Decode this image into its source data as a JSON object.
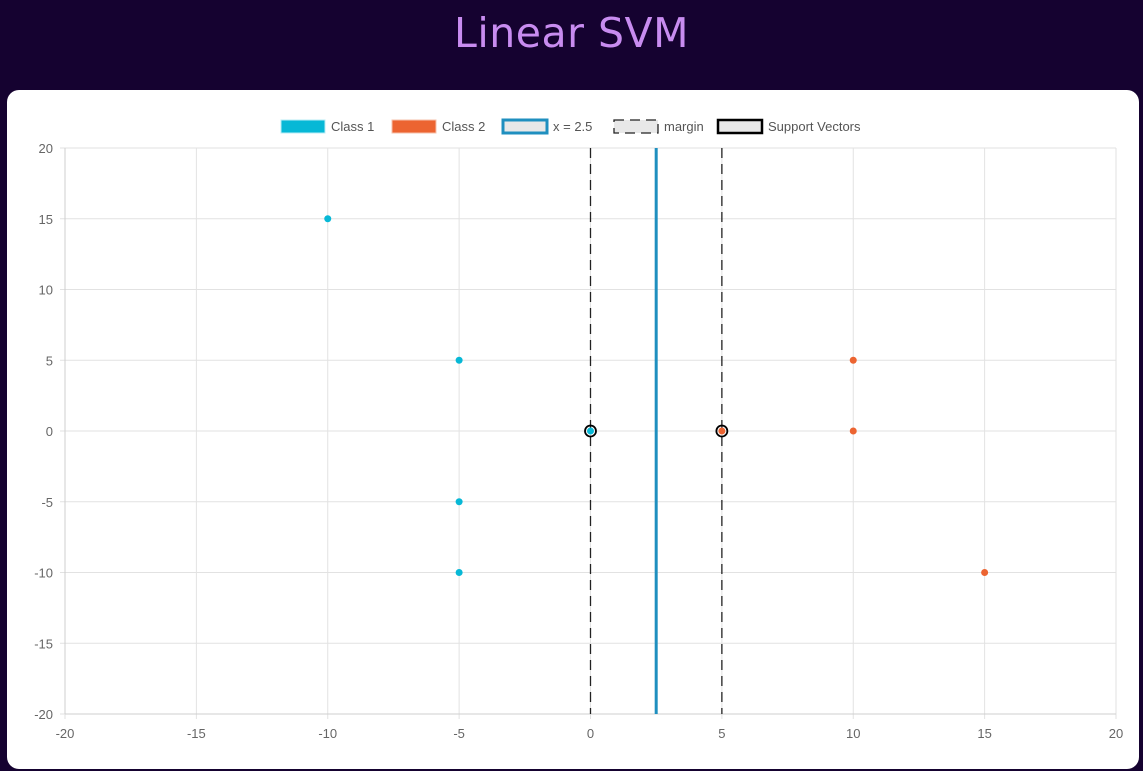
{
  "page": {
    "title": "Linear SVM"
  },
  "colors": {
    "background": "#150230",
    "title": "#c88cf0",
    "class1": "#07b8d6",
    "class2": "#ec6431",
    "boundary": "#1f8fbf",
    "margin": "#222222",
    "support": "#000000",
    "grid": "#e2e2e2"
  },
  "chart_data": {
    "type": "scatter",
    "xlim": [
      -20,
      20
    ],
    "ylim": [
      -20,
      20
    ],
    "xticks": [
      -20,
      -15,
      -10,
      -5,
      0,
      5,
      10,
      15,
      20
    ],
    "yticks": [
      20,
      15,
      10,
      5,
      0,
      -5,
      -10,
      -15,
      -20
    ],
    "grid": true,
    "legend_position": "top-center",
    "legend": [
      "Class 1",
      "Class 2",
      "x = 2.5",
      "margin",
      "Support Vectors"
    ],
    "series": [
      {
        "name": "Class 1",
        "points": [
          [
            -10,
            15
          ],
          [
            -5,
            5
          ],
          [
            -5,
            -5
          ],
          [
            -5,
            -10
          ],
          [
            0,
            0
          ]
        ]
      },
      {
        "name": "Class 2",
        "points": [
          [
            10,
            5
          ],
          [
            10,
            0
          ],
          [
            15,
            -10
          ],
          [
            5,
            0
          ]
        ]
      }
    ],
    "decision_boundary": {
      "label": "x = 2.5",
      "x": 2.5
    },
    "margin_lines": {
      "label": "margin",
      "x": [
        0,
        5
      ]
    },
    "support_vectors": {
      "label": "Support Vectors",
      "points": [
        [
          0,
          0
        ],
        [
          5,
          0
        ]
      ]
    }
  }
}
